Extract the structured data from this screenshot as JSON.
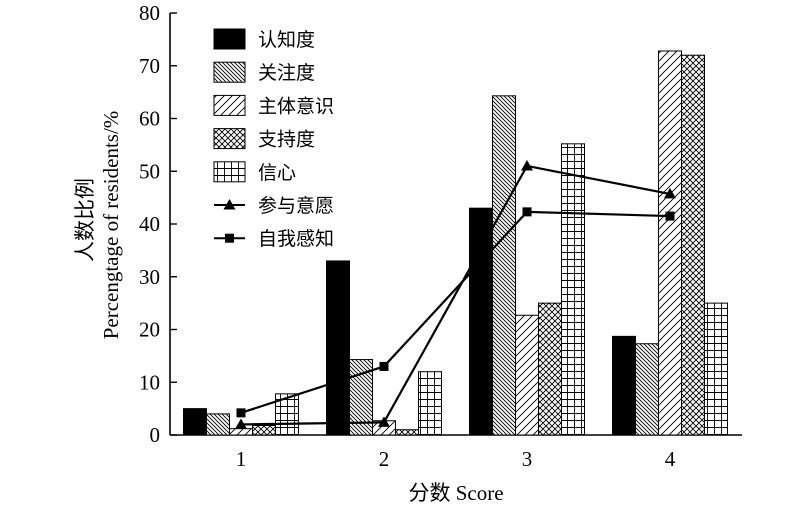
{
  "chart_data": {
    "type": "bar",
    "categories": [
      "1",
      "2",
      "3",
      "4"
    ],
    "ylim": [
      0,
      80
    ],
    "yticks": [
      0,
      10,
      20,
      30,
      40,
      50,
      60,
      70,
      80
    ],
    "xlabel": "分数 Score",
    "ylabel_cn": "人数比例",
    "ylabel_en": "Percengtage of residents/%",
    "grid": false,
    "legend_position": "top-left",
    "bar_series": [
      {
        "name": "认知度",
        "pattern": "solid",
        "values": [
          5.0,
          33.0,
          43.0,
          18.7
        ]
      },
      {
        "name": "关注度",
        "pattern": "dense-diagonal",
        "values": [
          4.0,
          14.3,
          64.3,
          17.3
        ]
      },
      {
        "name": "主体意识",
        "pattern": "sparse-diagonal",
        "values": [
          1.2,
          2.7,
          22.7,
          72.8
        ]
      },
      {
        "name": "支持度",
        "pattern": "crosshatch",
        "values": [
          1.8,
          1.0,
          25.0,
          72.0
        ]
      },
      {
        "name": "信心",
        "pattern": "grid",
        "values": [
          7.8,
          12.0,
          55.2,
          25.0
        ]
      }
    ],
    "line_series": [
      {
        "name": "参与意愿",
        "marker": "triangle",
        "values": [
          2.0,
          2.4,
          51.0,
          45.7
        ]
      },
      {
        "name": "自我感知",
        "marker": "square",
        "values": [
          4.2,
          13.0,
          42.3,
          41.5
        ]
      }
    ]
  }
}
